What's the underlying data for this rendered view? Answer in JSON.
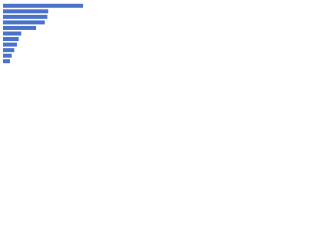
{
  "chart_data": {
    "type": "bar",
    "orientation": "horizontal",
    "categories": [
      null,
      null,
      null,
      null,
      null,
      null,
      null,
      null,
      null,
      null,
      null
    ],
    "values": [
      92,
      52,
      51,
      48,
      38,
      21,
      18,
      16,
      13,
      10,
      8
    ],
    "color": "#4a72c9",
    "xlim": [
      0,
      100
    ]
  }
}
